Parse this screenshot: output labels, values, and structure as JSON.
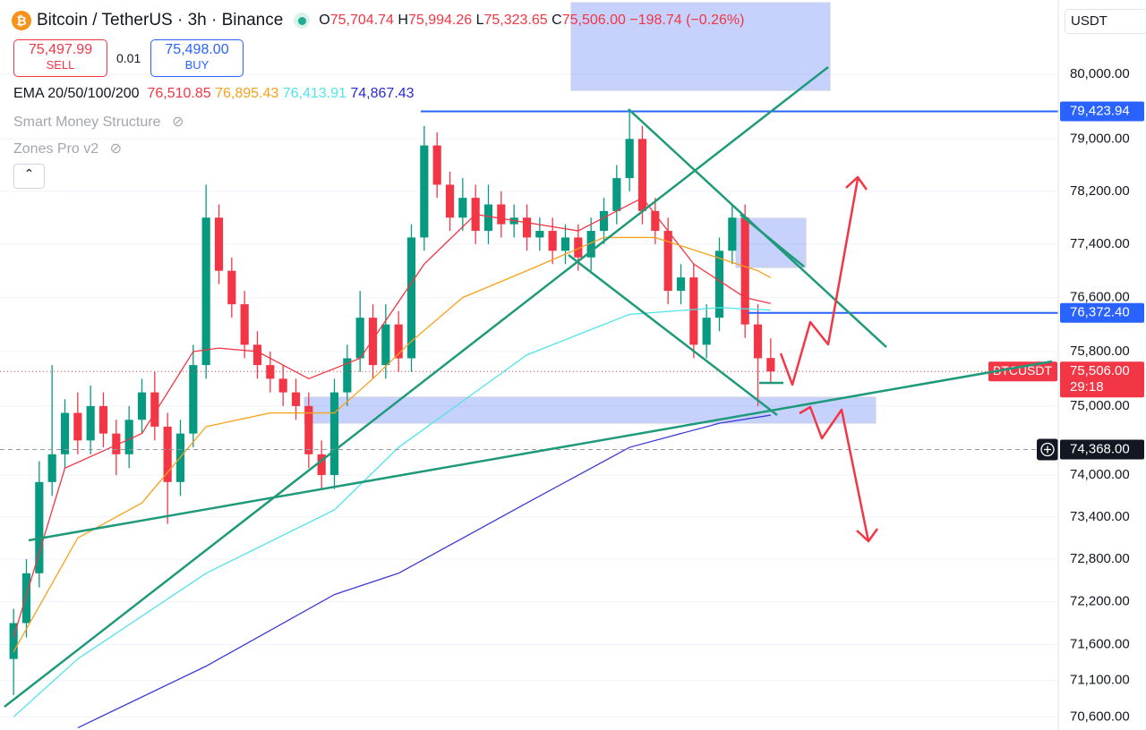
{
  "header": {
    "symbol": "Bitcoin / TetherUS · 3h · Binance",
    "o": "O",
    "open": "75,704.74",
    "h": "H",
    "high": "75,994.26",
    "l": "L",
    "low": "75,323.65",
    "c": "C",
    "close": "75,506.00",
    "change": "−198.74 (−0.26%)"
  },
  "order_panel": {
    "sell_price": "75,497.99",
    "sell": "SELL",
    "quantity": "0.01",
    "buy_price": "75,498.00",
    "buy": "BUY"
  },
  "indicators": {
    "ema_name": "EMA 20/50/100/200",
    "ema_values": [
      "76,510.85",
      "76,895.43",
      "76,413.91",
      "74,867.43"
    ],
    "smc": "Smart Money Structure",
    "zones": "Zones Pro v2"
  },
  "currency": "USDT",
  "chart_data": {
    "type": "candlestick",
    "log_scale": true,
    "up_color": "#089981",
    "down_color": "#f23645",
    "ylim": [
      70420,
      81164
    ],
    "yticks": [
      {
        "value": 80000,
        "label": "80,000.00"
      },
      {
        "value": 79000,
        "label": "79,000.00"
      },
      {
        "value": 78200,
        "label": "78,200.00"
      },
      {
        "value": 77400,
        "label": "77,400.00"
      },
      {
        "value": 76600,
        "label": "76,600.00"
      },
      {
        "value": 75800,
        "label": "75,800.00"
      },
      {
        "value": 75000,
        "label": "75,000.00"
      },
      {
        "value": 74000,
        "label": "74,000.00"
      },
      {
        "value": 73400,
        "label": "73,400.00"
      },
      {
        "value": 72800,
        "label": "72,800.00"
      },
      {
        "value": 72200,
        "label": "72,200.00"
      },
      {
        "value": 71600,
        "label": "71,600.00"
      },
      {
        "value": 71100,
        "label": "71,100.00"
      },
      {
        "value": 70600,
        "label": "70,600.00"
      }
    ],
    "open": [
      71400,
      71900,
      72600,
      73900,
      74300,
      74900,
      74500,
      75000,
      74600,
      74300,
      74800,
      75200,
      74700,
      73900,
      74600,
      75600,
      77800,
      77000,
      76500,
      75900,
      75600,
      75400,
      75200,
      75000,
      74300,
      74000,
      75200,
      75700,
      76300,
      75600,
      76200,
      75700,
      77500,
      78900,
      78300,
      77800,
      78100,
      77600,
      78000,
      77700,
      77800,
      77500,
      77600,
      77300,
      77500,
      77200,
      77600,
      77900,
      78400,
      79000,
      77900,
      77600,
      76700,
      76900,
      75900,
      76300,
      77300,
      77800,
      76200,
      75704.74
    ],
    "high": [
      72100,
      72800,
      74200,
      75600,
      75100,
      75200,
      75300,
      75200,
      74800,
      75000,
      75400,
      75500,
      74900,
      74800,
      75900,
      78300,
      78000,
      77200,
      76700,
      76100,
      75800,
      75600,
      75400,
      75200,
      74500,
      75400,
      75900,
      76700,
      76500,
      76500,
      76400,
      77700,
      79200,
      79100,
      78500,
      78400,
      78300,
      78300,
      78200,
      78000,
      78000,
      77800,
      77800,
      77700,
      77700,
      77800,
      78100,
      78600,
      79424,
      79200,
      78100,
      77800,
      77100,
      77100,
      76500,
      77500,
      78000,
      78000,
      76500,
      75994.26
    ],
    "low": [
      70900,
      71700,
      72400,
      73700,
      74100,
      74300,
      74300,
      74400,
      74000,
      74100,
      74600,
      74500,
      73300,
      73700,
      74400,
      75400,
      76800,
      76300,
      75700,
      75400,
      75200,
      75000,
      74800,
      74100,
      73800,
      73800,
      75000,
      75500,
      75400,
      75400,
      75500,
      75500,
      77300,
      78100,
      77600,
      77600,
      77400,
      77400,
      77500,
      77500,
      77300,
      77300,
      77100,
      77100,
      77000,
      77000,
      77400,
      77700,
      78200,
      77700,
      77400,
      76500,
      76500,
      75700,
      75700,
      76100,
      77100,
      76000,
      75000,
      75323.65
    ],
    "close": [
      71900,
      72600,
      73900,
      74300,
      74900,
      74500,
      75000,
      74600,
      74300,
      74800,
      75200,
      74700,
      73900,
      74600,
      75600,
      77800,
      77000,
      76500,
      75900,
      75600,
      75400,
      75200,
      75000,
      74300,
      74000,
      75200,
      75700,
      76300,
      75600,
      76200,
      75700,
      77500,
      78900,
      78300,
      77800,
      78100,
      77600,
      78000,
      77700,
      77800,
      77500,
      77600,
      77300,
      77500,
      77200,
      77600,
      77900,
      78400,
      79000,
      77900,
      77600,
      76700,
      76900,
      75900,
      76300,
      77300,
      77800,
      76200,
      75700,
      75506
    ],
    "series": [
      {
        "color": "#f23645",
        "x": [
          0,
          4,
          10,
          14,
          16,
          19,
          23,
          27,
          32,
          36,
          44,
          49,
          53,
          57,
          59
        ],
        "values": [
          71700,
          74100,
          74600,
          75800,
          75850,
          75800,
          75400,
          75700,
          77100,
          77850,
          77600,
          78100,
          77100,
          76600,
          76510.85
        ]
      },
      {
        "color": "#f7a21b",
        "x": [
          0,
          5,
          10,
          15,
          20,
          25,
          28,
          31,
          35,
          40,
          46,
          50,
          54,
          58,
          59
        ],
        "values": [
          71500,
          73100,
          73600,
          74700,
          74900,
          74900,
          75400,
          75950,
          76600,
          77000,
          77500,
          77500,
          77250,
          77000,
          76895.43
        ]
      },
      {
        "color": "#4fe3ec",
        "x": [
          0,
          5,
          15,
          25,
          30,
          40,
          48,
          55,
          59
        ],
        "values": [
          70600,
          71400,
          72600,
          73500,
          74400,
          75750,
          76350,
          76450,
          76413.91
        ]
      },
      {
        "color": "#3b3bd6",
        "x": [
          5,
          15,
          25,
          30,
          40,
          48,
          55,
          59
        ],
        "values": [
          70450,
          71300,
          72300,
          72600,
          73600,
          74400,
          74750,
          74867.43
        ]
      }
    ],
    "price_lines": [
      {
        "value": 79423.94,
        "label": "79,423.94"
      },
      {
        "value": 76372.4,
        "label": "76,372.40"
      }
    ],
    "last_price": {
      "value": 75506,
      "label": "75,506.00",
      "symbol": "BTCUSDT",
      "countdown": "29:18"
    },
    "crosshair": {
      "value": 74368,
      "label": "74,368.00"
    }
  }
}
